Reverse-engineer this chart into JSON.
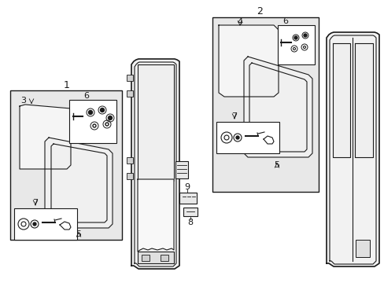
{
  "bg_color": "#ffffff",
  "line_color": "#1a1a1a",
  "fill_box": "#e8e8e8",
  "fill_white": "#ffffff",
  "fig_width": 4.89,
  "fig_height": 3.6,
  "dpi": 100
}
